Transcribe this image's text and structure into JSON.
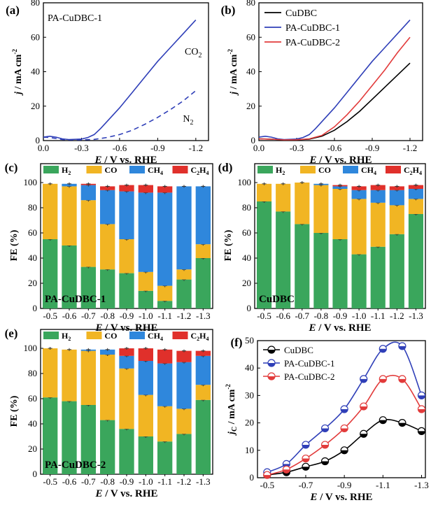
{
  "figure": {
    "colors": {
      "h2": "#3aa65c",
      "co": "#f1b523",
      "ch4": "#2f87dc",
      "c2h4": "#e0302b",
      "cudbc": "#000000",
      "pa1": "#2f3fb8",
      "pa2": "#e23b3b"
    },
    "species_labels": [
      "H",
      "2",
      "CO",
      "CH",
      "4",
      "C",
      "2",
      "H",
      "4"
    ]
  },
  "chart_data": [
    {
      "id": "a",
      "label": "(a)",
      "type": "line",
      "title": "PA-CuDBC-1",
      "xlabel_e": "E",
      "xlabel_rest": " / V vs. RHE",
      "ylabel_j": "j",
      "ylabel_rest": " / mA cm",
      "ylabel_exp": "-2",
      "xlim": [
        0.0,
        -1.3
      ],
      "ylim": [
        0,
        80
      ],
      "xticks": [
        "0.0",
        "-0.3",
        "-0.6",
        "-0.9",
        "-1.2"
      ],
      "xtick_values": [
        0,
        -0.3,
        -0.6,
        -0.9,
        -1.2
      ],
      "yticks": [
        "0",
        "20",
        "40",
        "60",
        "80"
      ],
      "ytick_values": [
        0,
        20,
        40,
        60,
        80
      ],
      "annotations": [
        {
          "main": "CO",
          "sub": "2",
          "x": -1.18,
          "y": 50
        },
        {
          "main": "N",
          "sub": "2",
          "x": -1.14,
          "y": 11
        }
      ],
      "series": [
        {
          "name": "CO2",
          "color": "pa1",
          "dash": false,
          "x": [
            0.0,
            -0.05,
            -0.1,
            -0.15,
            -0.2,
            -0.3,
            -0.35,
            -0.4,
            -0.45,
            -0.5,
            -0.6,
            -0.7,
            -0.8,
            -0.9,
            -1.0,
            -1.1,
            -1.2
          ],
          "y": [
            2.0,
            2.5,
            2.0,
            1.0,
            0.6,
            0.9,
            1.8,
            3.5,
            7.0,
            11,
            19,
            28,
            37,
            46,
            54,
            62,
            70
          ]
        },
        {
          "name": "N2",
          "color": "pa1",
          "dash": true,
          "x": [
            0.0,
            -0.05,
            -0.1,
            -0.15,
            -0.2,
            -0.3,
            -0.4,
            -0.5,
            -0.6,
            -0.7,
            -0.8,
            -0.9,
            -1.0,
            -1.1,
            -1.2
          ],
          "y": [
            2.0,
            1.8,
            1.2,
            0.6,
            0.4,
            0.4,
            0.7,
            1.8,
            3.5,
            6,
            9.5,
            13.5,
            18,
            23,
            29
          ]
        }
      ]
    },
    {
      "id": "b",
      "label": "(b)",
      "type": "line",
      "xlabel_e": "E",
      "xlabel_rest": " / V vs. RHE",
      "ylabel_j": "j",
      "ylabel_rest": " / mA cm",
      "ylabel_exp": "-2",
      "xlim": [
        0.0,
        -1.3
      ],
      "ylim": [
        0,
        80
      ],
      "xticks": [
        "0.0",
        "-0.3",
        "-0.6",
        "-0.9",
        "-1.2"
      ],
      "xtick_values": [
        0,
        -0.3,
        -0.6,
        -0.9,
        -1.2
      ],
      "yticks": [
        "0",
        "20",
        "40",
        "60",
        "80"
      ],
      "ytick_values": [
        0,
        20,
        40,
        60,
        80
      ],
      "legend": [
        "CuDBC",
        "PA-CuDBC-1",
        "PA-CuDBC-2"
      ],
      "series": [
        {
          "name": "CuDBC",
          "color": "cudbc",
          "x": [
            0.0,
            -0.1,
            -0.2,
            -0.3,
            -0.4,
            -0.5,
            -0.6,
            -0.7,
            -0.8,
            -0.9,
            -1.0,
            -1.1,
            -1.2
          ],
          "y": [
            1.0,
            0.8,
            0.4,
            0.5,
            0.8,
            2.5,
            6,
            11,
            17,
            24,
            31,
            38,
            45
          ]
        },
        {
          "name": "PA-CuDBC-1",
          "color": "pa1",
          "x": [
            0.0,
            -0.05,
            -0.1,
            -0.15,
            -0.2,
            -0.3,
            -0.35,
            -0.4,
            -0.45,
            -0.5,
            -0.6,
            -0.7,
            -0.8,
            -0.9,
            -1.0,
            -1.1,
            -1.2
          ],
          "y": [
            2.0,
            2.5,
            2.0,
            1.0,
            0.6,
            0.9,
            1.8,
            3.5,
            7.0,
            11,
            19,
            28,
            37,
            46,
            54,
            62,
            70
          ]
        },
        {
          "name": "PA-CuDBC-2",
          "color": "pa2",
          "x": [
            0.0,
            -0.1,
            -0.2,
            -0.3,
            -0.4,
            -0.5,
            -0.6,
            -0.7,
            -0.8,
            -0.9,
            -1.0,
            -1.1,
            -1.2
          ],
          "y": [
            1.0,
            0.8,
            0.4,
            0.5,
            1.0,
            3,
            8,
            15,
            23,
            32,
            41,
            51,
            60
          ]
        }
      ]
    },
    {
      "id": "c",
      "label": "(c)",
      "type": "stacked-bar",
      "sample": "PA-CuDBC-1",
      "categories": [
        "-0.5",
        "-0.6",
        "-0.7",
        "-0.8",
        "-0.9",
        "-1.0",
        "-1.1",
        "-1.2",
        "-1.3"
      ],
      "h2": [
        55,
        50,
        33,
        31,
        28,
        14,
        6,
        23,
        40
      ],
      "co": [
        44,
        47,
        53,
        36,
        27,
        15,
        12,
        8,
        11
      ],
      "ch4": [
        0,
        2,
        12,
        27,
        38,
        63,
        74,
        66,
        46
      ],
      "c2h4": [
        0,
        0,
        1,
        3,
        5,
        6,
        5,
        0,
        0
      ],
      "ylabel": "FE (%)",
      "xlabel_e": "E",
      "xlabel_rest": " / V vs. RHE",
      "yticks": [
        "0",
        "20",
        "40",
        "60",
        "80",
        "100"
      ],
      "ytick_values": [
        0,
        20,
        40,
        60,
        80,
        100
      ],
      "ylim": [
        0,
        100
      ]
    },
    {
      "id": "d",
      "label": "(d)",
      "type": "stacked-bar",
      "sample": "CuDBC",
      "categories": [
        "-0.5",
        "-0.6",
        "-0.7",
        "-0.8",
        "-0.9",
        "-1.0",
        "-1.1",
        "-1.2",
        "-1.3"
      ],
      "h2": [
        85,
        77,
        67,
        60,
        55,
        43,
        49,
        59,
        75
      ],
      "co": [
        14,
        22,
        33,
        38,
        40,
        44,
        35,
        23,
        12
      ],
      "ch4": [
        0,
        0,
        0,
        1,
        2,
        7,
        10,
        12,
        8
      ],
      "c2h4": [
        0,
        0,
        0,
        0,
        1,
        3,
        4,
        3,
        3
      ],
      "ylabel": "FE (%)",
      "xlabel_e": "E",
      "xlabel_rest": " / V vs. RHE",
      "yticks": [
        "0",
        "20",
        "40",
        "60",
        "80",
        "100"
      ],
      "ytick_values": [
        0,
        20,
        40,
        60,
        80,
        100
      ],
      "ylim": [
        0,
        100
      ]
    },
    {
      "id": "e",
      "label": "(e)",
      "type": "stacked-bar",
      "sample": "PA-CuDBC-2",
      "categories": [
        "-0.5",
        "-0.6",
        "-0.7",
        "-0.8",
        "-0.9",
        "-1.0",
        "-1.1",
        "-1.2",
        "-1.3"
      ],
      "h2": [
        61,
        58,
        55,
        43,
        36,
        30,
        26,
        32,
        59
      ],
      "co": [
        39,
        41,
        43,
        52,
        48,
        33,
        28,
        20,
        12
      ],
      "ch4": [
        0,
        0,
        1,
        4,
        10,
        27,
        34,
        37,
        23
      ],
      "c2h4": [
        0,
        0,
        0,
        0,
        6,
        10,
        11,
        9,
        4
      ],
      "ylabel": "FE (%)",
      "xlabel_e": "E",
      "xlabel_rest": " / V vs. RHE",
      "yticks": [
        "0",
        "20",
        "40",
        "60",
        "80",
        "100"
      ],
      "ytick_values": [
        0,
        20,
        40,
        60,
        80,
        100
      ],
      "ylim": [
        0,
        100
      ]
    },
    {
      "id": "f",
      "label": "(f)",
      "type": "line-marker",
      "xlabel_e": "E",
      "xlabel_rest": " / V vs. RHE",
      "ylabel_j": "j",
      "ylabel_sub": "C",
      "ylabel_rest": " / mA cm",
      "ylabel_exp": "-2",
      "xlim": [
        -0.45,
        -1.32
      ],
      "ylim": [
        0,
        50
      ],
      "xticks": [
        "-0.5",
        "-0.7",
        "-0.9",
        "-1.1",
        "-1.3"
      ],
      "xtick_values": [
        -0.5,
        -0.7,
        -0.9,
        -1.1,
        -1.3
      ],
      "yticks": [
        "0",
        "10",
        "20",
        "30",
        "40",
        "50"
      ],
      "ytick_values": [
        0,
        10,
        20,
        30,
        40,
        50
      ],
      "legend": [
        "CuDBC",
        "PA-CuDBC-1",
        "PA-CuDBC-2"
      ],
      "series": [
        {
          "name": "CuDBC",
          "color": "cudbc",
          "x": [
            -0.5,
            -0.6,
            -0.7,
            -0.8,
            -0.9,
            -1.0,
            -1.1,
            -1.2,
            -1.3
          ],
          "y": [
            1,
            2,
            4,
            6,
            10,
            16,
            21,
            20,
            17
          ]
        },
        {
          "name": "PA-CuDBC-1",
          "color": "pa1",
          "x": [
            -0.5,
            -0.6,
            -0.7,
            -0.8,
            -0.9,
            -1.0,
            -1.1,
            -1.2,
            -1.3
          ],
          "y": [
            2,
            5,
            12,
            18,
            25,
            36,
            47,
            48,
            30
          ]
        },
        {
          "name": "PA-CuDBC-2",
          "color": "pa2",
          "x": [
            -0.5,
            -0.6,
            -0.7,
            -0.8,
            -0.9,
            -1.0,
            -1.1,
            -1.2,
            -1.3
          ],
          "y": [
            1,
            3,
            7,
            12,
            18,
            26,
            36,
            36,
            25
          ]
        }
      ]
    }
  ]
}
